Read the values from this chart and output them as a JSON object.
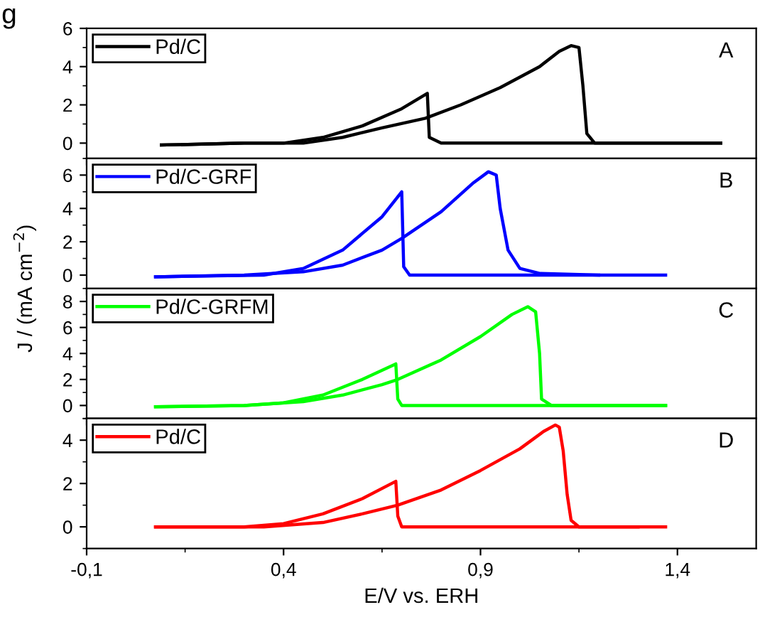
{
  "chart_data": [
    {
      "type": "line",
      "annotations": [
        "g",
        "A"
      ],
      "xlim": [
        -0.1,
        1.6
      ],
      "xticks": [
        {
          "value": -0.1,
          "label": null
        },
        {
          "value": 0.4,
          "label": null
        },
        {
          "value": 0.9,
          "label": null
        },
        {
          "value": 1.4,
          "label": null
        }
      ],
      "ylim": [
        -0.8,
        6
      ],
      "yticks": [
        0,
        2,
        4,
        6
      ],
      "tick_labels": "y",
      "legend": "top left",
      "grid": false,
      "series": [
        {
          "name": "Pd/C",
          "color": "#000000",
          "x": [
            0.09,
            0.3,
            0.45,
            0.55,
            0.65,
            0.76,
            0.85,
            0.95,
            1.05,
            1.1,
            1.13,
            1.15,
            1.16,
            1.17,
            1.19,
            1.3,
            1.51
          ],
          "values": [
            -0.1,
            0,
            0,
            0.3,
            0.8,
            1.3,
            2.0,
            2.9,
            4.0,
            4.8,
            5.1,
            5.0,
            3.0,
            0.5,
            0,
            0,
            0
          ]
        },
        {
          "color": "#000000",
          "x": [
            0.09,
            0.3,
            0.4,
            0.5,
            0.6,
            0.7,
            0.765,
            0.77,
            0.8,
            1.3,
            1.51
          ],
          "values": [
            -0.1,
            0,
            0,
            0.3,
            0.9,
            1.8,
            2.6,
            0.3,
            0,
            0,
            0
          ]
        }
      ]
    },
    {
      "type": "line",
      "annotations": [
        "B"
      ],
      "ylabel": "J / (mA cm$^{−2}$)",
      "xlim": [
        -0.1,
        1.6
      ],
      "xticks": [
        {
          "value": -0.1,
          "label": null
        },
        {
          "value": 0.4,
          "label": null
        },
        {
          "value": 0.9,
          "label": null
        },
        {
          "value": 1.4,
          "label": null
        }
      ],
      "ylim": [
        -0.8,
        7
      ],
      "yticks": [
        0,
        2,
        4,
        6
      ],
      "tick_labels": "y",
      "legend": "top left",
      "grid": false,
      "series": [
        {
          "name": "Pd/C-GRF",
          "color": "#0000ff",
          "x": [
            0.075,
            0.3,
            0.45,
            0.55,
            0.65,
            0.7,
            0.8,
            0.88,
            0.92,
            0.94,
            0.95,
            0.97,
            1.0,
            1.05,
            1.2,
            1.37
          ],
          "values": [
            -0.1,
            0,
            0.2,
            0.6,
            1.5,
            2.2,
            3.8,
            5.5,
            6.2,
            6.0,
            4.0,
            1.5,
            0.4,
            0.1,
            0,
            0
          ]
        },
        {
          "color": "#0000ff",
          "x": [
            0.075,
            0.35,
            0.45,
            0.55,
            0.65,
            0.7,
            0.705,
            0.72,
            1.2
          ],
          "values": [
            -0.1,
            0,
            0.4,
            1.5,
            3.5,
            5.0,
            0.5,
            0,
            0
          ]
        }
      ]
    },
    {
      "type": "line",
      "annotations": [
        "C"
      ],
      "xlim": [
        -0.1,
        1.6
      ],
      "xticks": [
        {
          "value": -0.1,
          "label": null
        },
        {
          "value": 0.4,
          "label": null
        },
        {
          "value": 0.9,
          "label": null
        },
        {
          "value": 1.4,
          "label": null
        }
      ],
      "ylim": [
        -1,
        9
      ],
      "yticks": [
        0,
        2,
        4,
        6,
        8
      ],
      "tick_labels": "y",
      "legend": "top left",
      "grid": false,
      "series": [
        {
          "name": "Pd/C-GRFM",
          "color": "#00ff00",
          "x": [
            0.075,
            0.3,
            0.45,
            0.55,
            0.65,
            0.69,
            0.8,
            0.9,
            0.98,
            1.02,
            1.04,
            1.05,
            1.055,
            1.08,
            1.37
          ],
          "values": [
            -0.1,
            0,
            0.3,
            0.8,
            1.6,
            2.0,
            3.5,
            5.3,
            7.0,
            7.6,
            7.2,
            4.0,
            0.5,
            0,
            0
          ]
        },
        {
          "color": "#00ff00",
          "x": [
            0.075,
            0.3,
            0.4,
            0.5,
            0.6,
            0.685,
            0.69,
            0.7,
            1.37
          ],
          "values": [
            -0.1,
            0,
            0.2,
            0.8,
            2.0,
            3.2,
            0.5,
            0,
            0
          ]
        }
      ]
    },
    {
      "type": "line",
      "annotations": [
        "D"
      ],
      "xlabel": "E/V vs. ERH",
      "xlim": [
        -0.1,
        1.6
      ],
      "xticks": [
        {
          "value": -0.1,
          "label": "-0,1"
        },
        {
          "value": 0.4,
          "label": "0,4"
        },
        {
          "value": 0.9,
          "label": "0,9"
        },
        {
          "value": 1.4,
          "label": "1,4"
        }
      ],
      "ylim": [
        -1,
        5
      ],
      "yticks": [
        0,
        2,
        4
      ],
      "legend": "top left",
      "grid": false,
      "series": [
        {
          "name": "Pd/C",
          "color": "#ff0000",
          "x": [
            0.075,
            0.35,
            0.5,
            0.6,
            0.69,
            0.8,
            0.9,
            1.0,
            1.06,
            1.09,
            1.1,
            1.11,
            1.12,
            1.13,
            1.15,
            1.37
          ],
          "values": [
            0,
            0,
            0.2,
            0.6,
            1.0,
            1.7,
            2.6,
            3.6,
            4.4,
            4.7,
            4.6,
            3.5,
            1.5,
            0.3,
            0,
            0
          ]
        },
        {
          "color": "#ff0000",
          "x": [
            0.075,
            0.3,
            0.4,
            0.5,
            0.6,
            0.685,
            0.69,
            0.7,
            1.3
          ],
          "values": [
            0,
            0,
            0.15,
            0.6,
            1.3,
            2.1,
            0.5,
            0,
            0
          ]
        }
      ]
    }
  ]
}
